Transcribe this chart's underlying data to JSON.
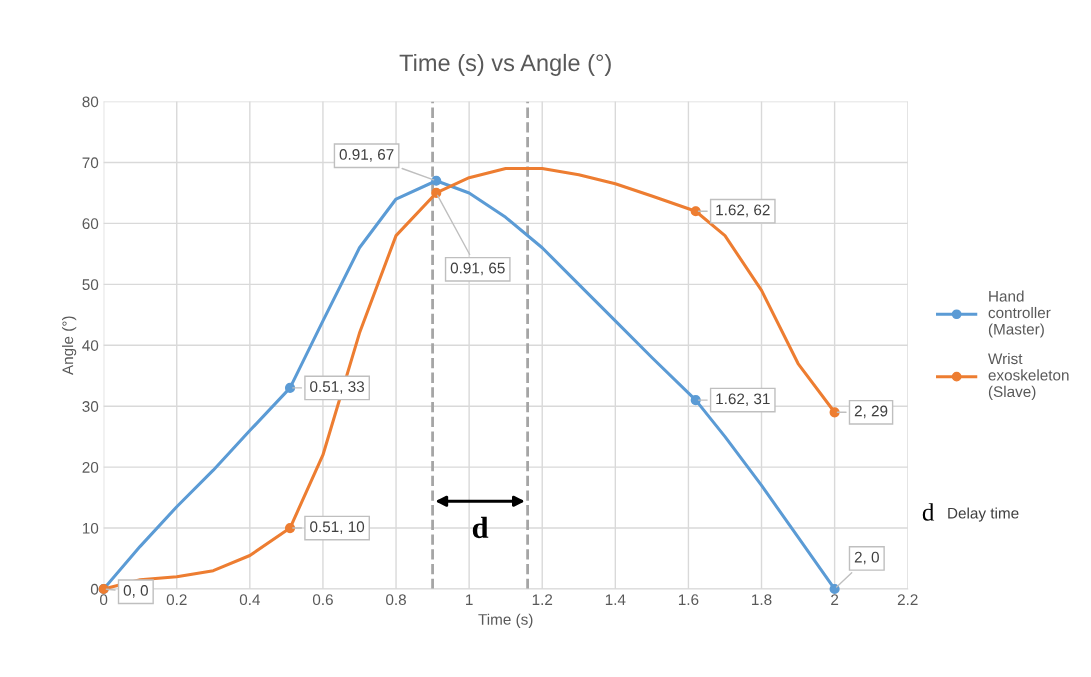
{
  "chart_data": {
    "type": "line",
    "title": "Time (s) vs Angle (°)",
    "xlabel": "Time (s)",
    "ylabel": "Angle (°)",
    "xlim": [
      0,
      2.2
    ],
    "xticks": [
      0,
      0.2,
      0.4,
      0.6,
      0.8,
      1,
      1.2,
      1.4,
      1.6,
      1.8,
      2,
      2.2
    ],
    "ylim": [
      0,
      80
    ],
    "yticks": [
      0,
      10,
      20,
      30,
      40,
      50,
      60,
      70,
      80
    ],
    "x": [
      0,
      0.1,
      0.2,
      0.3,
      0.4,
      0.51,
      0.6,
      0.7,
      0.8,
      0.91,
      1.0,
      1.1,
      1.2,
      1.3,
      1.4,
      1.5,
      1.62,
      1.7,
      1.8,
      1.9,
      2
    ],
    "series": [
      {
        "name": "Hand controller (Master)",
        "color": "#5b9bd5",
        "marker": "none",
        "values": [
          0,
          7,
          13.5,
          19.5,
          26,
          33,
          44,
          56,
          64,
          67,
          65,
          61,
          56,
          50,
          44,
          38,
          31,
          25,
          17,
          8.5,
          0
        ]
      },
      {
        "name": "Wrist exoskeleton (Slave)",
        "color": "#ed7d31",
        "marker": "none",
        "values": [
          0,
          1.5,
          2,
          3,
          5.5,
          10,
          22,
          42,
          58,
          65,
          67.5,
          69,
          69,
          68,
          66.5,
          64.5,
          62,
          58,
          49,
          37,
          29
        ]
      },
      {
        "type": "scatter",
        "color": "#5b9bd5",
        "x": [
          0,
          0.51,
          0.91,
          1.62,
          2
        ],
        "values": [
          0,
          33,
          67,
          31,
          0
        ],
        "value_labels": [
          "0, 0",
          "0.51, 33",
          "0.91, 67",
          "1.62, 31",
          "2, 0"
        ]
      },
      {
        "type": "scatter",
        "color": "#ed7d31",
        "x": [
          0,
          0.51,
          0.91,
          1.62,
          2
        ],
        "values": [
          0,
          10,
          65,
          62,
          29
        ],
        "value_labels": [
          null,
          "0.51, 10",
          "0.91, 65",
          "1.62, 62",
          "2, 29"
        ]
      }
    ],
    "ref_lines": [
      {
        "axis": "x",
        "value": 0.9,
        "color": "#a5a5a5",
        "line_style": "dashed"
      },
      {
        "axis": "x",
        "value": 1.16,
        "color": "#a5a5a5",
        "line_style": "dashed"
      }
    ],
    "annotations": [
      "d",
      "d",
      "Delay time"
    ],
    "grid": true,
    "legend": "right",
    "marker": "circle",
    "line_style": "solid"
  }
}
